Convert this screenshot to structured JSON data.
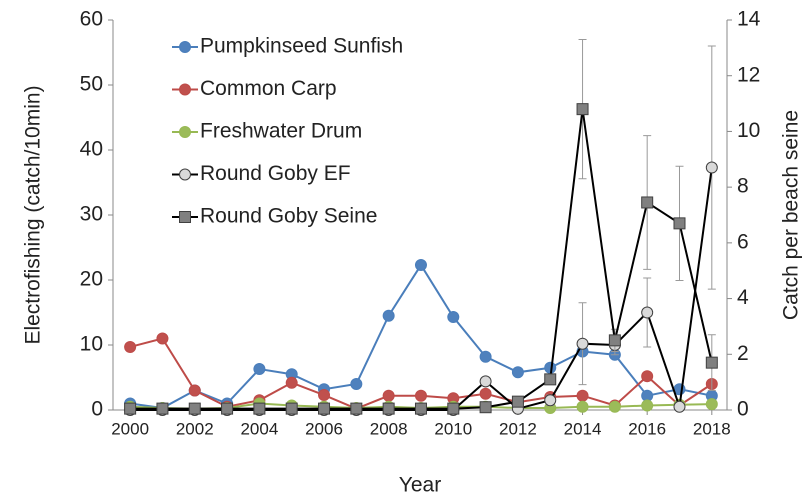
{
  "chart_data": {
    "type": "line",
    "x_label": "Year",
    "y_label": "Electrofishing (catch/10min)",
    "y2_label": "Catch per beach seine",
    "x": [
      2000,
      2001,
      2002,
      2003,
      2004,
      2005,
      2006,
      2007,
      2008,
      2009,
      2010,
      2011,
      2012,
      2013,
      2014,
      2015,
      2016,
      2017,
      2018
    ],
    "xlim": [
      1999.47,
      2018.47
    ],
    "xticks": [
      2000,
      2002,
      2004,
      2006,
      2008,
      2010,
      2012,
      2014,
      2016,
      2018
    ],
    "ylim": [
      0,
      60
    ],
    "yticks": [
      0,
      10,
      20,
      30,
      40,
      50,
      60
    ],
    "y2lim": [
      0,
      14
    ],
    "y2ticks": [
      0,
      2,
      4,
      6,
      8,
      10,
      12,
      14
    ],
    "legend": "upper left",
    "series": [
      {
        "name": "Pumpkinseed Sunfish",
        "color": "#4a7ebb",
        "marker_fill": "#4f81bd",
        "marker": "circle",
        "values": [
          1,
          0.3,
          3,
          1,
          6.3,
          5.5,
          3.2,
          4,
          14.5,
          22.3,
          14.3,
          8.2,
          5.8,
          6.5,
          9,
          8.5,
          2.2,
          3.2,
          2.2
        ]
      },
      {
        "name": "Common Carp",
        "color": "#be4b48",
        "marker_fill": "#c0504d",
        "marker": "circle",
        "values": [
          9.7,
          11,
          3,
          0.5,
          1.5,
          4.2,
          2.3,
          0.2,
          2.2,
          2.2,
          1.8,
          2.5,
          1.2,
          2,
          2.2,
          0.7,
          5.2,
          0.7,
          4
        ]
      },
      {
        "name": "Freshwater Drum",
        "color": "#98b954",
        "marker_fill": "#9bbb59",
        "marker": "circle",
        "values": [
          0.5,
          0.3,
          0.2,
          0.3,
          1,
          0.7,
          0.5,
          0.3,
          0.5,
          0.3,
          0.5,
          0.5,
          0.3,
          0.3,
          0.5,
          0.5,
          0.7,
          0.8,
          0.9
        ]
      },
      {
        "name": "Round Goby EF",
        "color": "#000000",
        "marker_fill": "#d9d9d9",
        "marker": "circle",
        "values": [
          0,
          0,
          0,
          0,
          0,
          0,
          0,
          0,
          0,
          0,
          0,
          4.4,
          0.2,
          1.5,
          10.2,
          10,
          15,
          0.5,
          37.3
        ],
        "errors": [
          null,
          null,
          null,
          null,
          null,
          null,
          null,
          null,
          null,
          null,
          null,
          null,
          null,
          0.8,
          6.3,
          1.5,
          5.3,
          null,
          18.7
        ]
      },
      {
        "name": "Round Goby Seine",
        "color": "#000000",
        "marker_fill": "#808080",
        "marker": "square",
        "axis": "y2",
        "values": [
          0.05,
          0.05,
          0.05,
          0.05,
          0.05,
          0.05,
          0.05,
          0.05,
          0.05,
          0.05,
          0.05,
          0.1,
          0.3,
          1.1,
          10.8,
          2.5,
          7.45,
          6.7,
          1.7
        ],
        "errors": [
          null,
          null,
          null,
          null,
          null,
          null,
          null,
          null,
          null,
          null,
          null,
          null,
          null,
          null,
          2.5,
          0.4,
          2.4,
          2.05,
          1.0
        ]
      }
    ]
  }
}
